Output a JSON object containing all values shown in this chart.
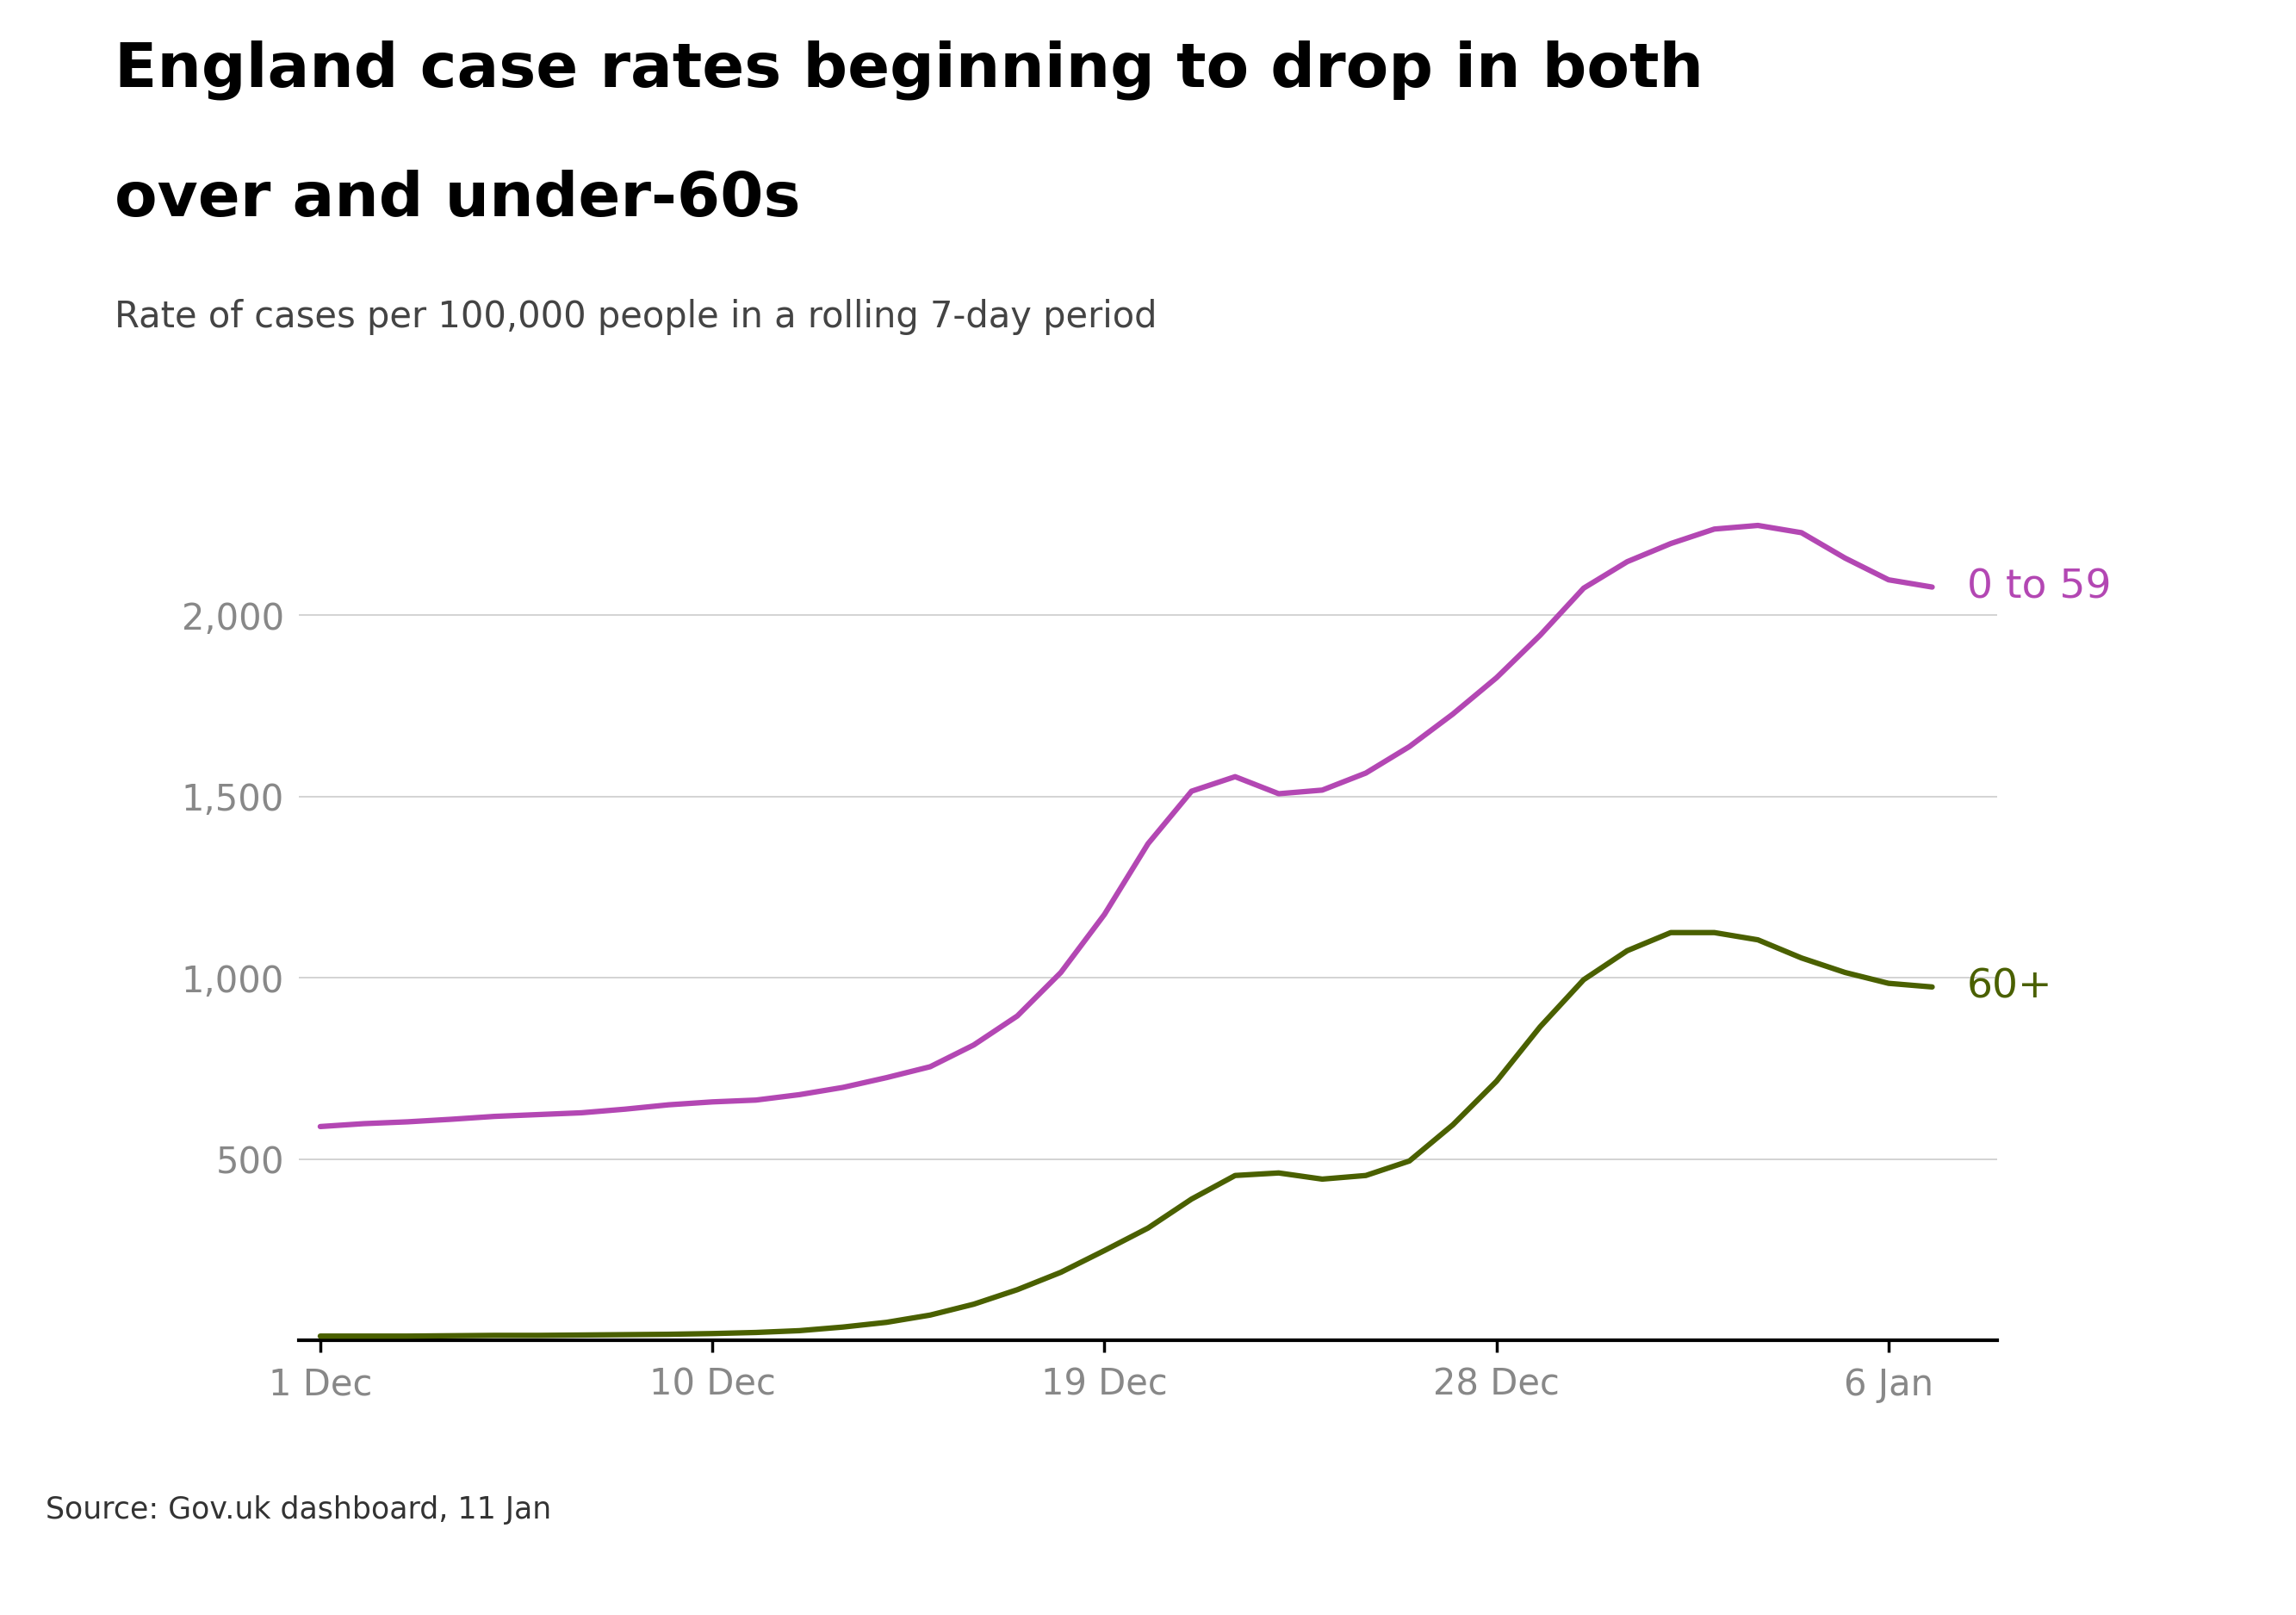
{
  "title_line1": "England case rates beginning to drop in both",
  "title_line2": "over and under-60s",
  "subtitle": "Rate of cases per 100,000 people in a rolling 7-day period",
  "source": "Source: Gov.uk dashboard, 11 Jan",
  "background_color": "#ffffff",
  "title_color": "#000000",
  "subtitle_color": "#444444",
  "tick_color": "#888888",
  "line1_color": "#b347b3",
  "line2_color": "#4a6000",
  "line1_label": "0 to 59",
  "line2_label": "60+",
  "xtick_labels": [
    "1 Dec",
    "10 Dec",
    "19 Dec",
    "28 Dec",
    "6 Jan"
  ],
  "xtick_positions": [
    0,
    9,
    18,
    27,
    36
  ],
  "ytick_labels": [
    "500",
    "1,000",
    "1,500",
    "2,000"
  ],
  "ytick_values": [
    500,
    1000,
    1500,
    2000
  ],
  "ylim": [
    0,
    2450
  ],
  "line1_x": [
    0,
    1,
    2,
    3,
    4,
    5,
    6,
    7,
    8,
    9,
    10,
    11,
    12,
    13,
    14,
    15,
    16,
    17,
    18,
    19,
    20,
    21,
    22,
    23,
    24,
    25,
    26,
    27,
    28,
    29,
    30,
    31,
    32,
    33,
    34,
    35,
    36,
    37
  ],
  "line1_y": [
    590,
    598,
    603,
    610,
    618,
    623,
    628,
    638,
    650,
    658,
    663,
    678,
    698,
    725,
    755,
    815,
    895,
    1015,
    1175,
    1370,
    1515,
    1555,
    1508,
    1518,
    1565,
    1638,
    1728,
    1828,
    1945,
    2075,
    2148,
    2198,
    2238,
    2248,
    2228,
    2158,
    2098,
    2078
  ],
  "line2_x": [
    0,
    1,
    2,
    3,
    4,
    5,
    6,
    7,
    8,
    9,
    10,
    11,
    12,
    13,
    14,
    15,
    16,
    17,
    18,
    19,
    20,
    21,
    22,
    23,
    24,
    25,
    26,
    27,
    28,
    29,
    30,
    31,
    32,
    33,
    34,
    35,
    36,
    37
  ],
  "line2_y": [
    12,
    12,
    12,
    13,
    14,
    14,
    15,
    16,
    17,
    19,
    22,
    27,
    37,
    50,
    70,
    100,
    140,
    188,
    248,
    310,
    390,
    455,
    462,
    445,
    455,
    495,
    595,
    715,
    865,
    995,
    1075,
    1125,
    1125,
    1105,
    1055,
    1015,
    985,
    975
  ],
  "linewidth": 4.5,
  "title_fontsize": 52,
  "subtitle_fontsize": 30,
  "label_fontsize": 34,
  "tick_fontsize": 30,
  "source_fontsize": 25
}
